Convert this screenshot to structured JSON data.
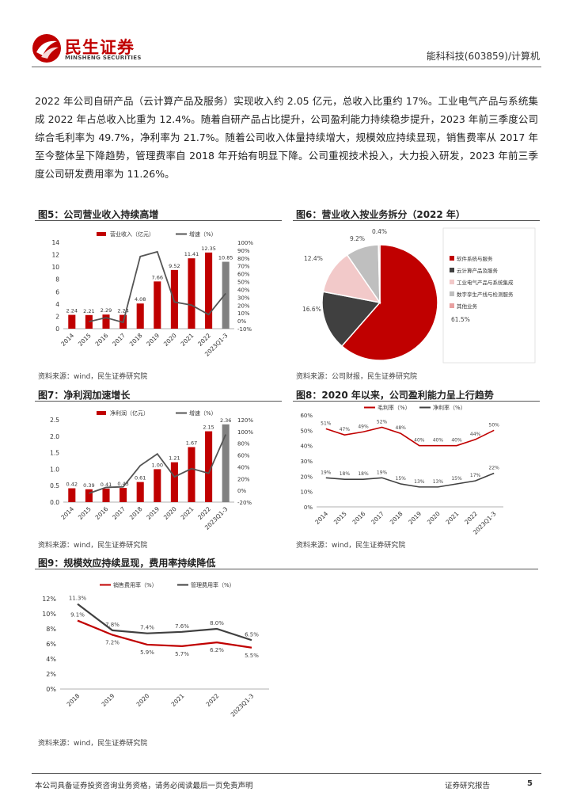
{
  "header": {
    "logo_cn": "民生证券",
    "logo_en": "MINSHENG SECURITIES",
    "company_ticker": "能科科技(603859)/计算机"
  },
  "intro_text": "2022 年公司自研产品（云计算产品及服务）实现收入约 2.05 亿元，总收入比重约 17%。工业电气产品与系统集成 2022 年占总收入比重为 12.4%。随着自研产品占比提升，公司盈利能力持续稳步提升，2023 年前三季度公司综合毛利率为 49.7%，净利率为 21.7%。随着公司收入体量持续增大，规模效应持续显现，销售费率从 2017 年至今整体呈下降趋势，管理费率自 2018 年开始有明显下降。公司重视技术投入，大力投入研发，2023 年前三季度公司研发费用率为 11.26%。",
  "figures": {
    "fig5": {
      "title": "图5：公司营业收入持续高增",
      "source": "资料来源：wind，民生证券研究院"
    },
    "fig6": {
      "title": "图6：营业收入按业务拆分（2022 年）",
      "source": "资料来源：公司财报，民生证券研究院"
    },
    "fig7": {
      "title": "图7：净利润加速增长",
      "source": "资料来源：wind，民生证券研究院"
    },
    "fig8": {
      "title": "图8：2020 年以来，公司盈利能力呈上行趋势",
      "source": "资料来源：wind，民生证券研究院"
    },
    "fig9": {
      "title": "图9：规模效应持续显现，费用率持续降低",
      "source": "资料来源：wind，民生证券研究院"
    }
  },
  "chart_data": [
    {
      "id": "fig5",
      "type": "bar",
      "categories": [
        "2014",
        "2015",
        "2016",
        "2017",
        "2018",
        "2019",
        "2020",
        "2021",
        "2022",
        "2023Q1-3"
      ],
      "series": [
        {
          "name": "营业收入（亿元）",
          "axis": "left",
          "type": "bar",
          "values": [
            2.24,
            2.21,
            2.29,
            2.24,
            4.08,
            7.66,
            9.52,
            11.41,
            12.35,
            10.85
          ],
          "labels": [
            "2.24",
            "2.21",
            "2.29",
            "2.24",
            "4.08",
            "7.66",
            "9.52",
            "11.41",
            "12.35",
            "10.85"
          ],
          "color": "#c00000",
          "last_color": "#808080"
        },
        {
          "name": "增速（%）",
          "axis": "right",
          "type": "line",
          "values": [
            null,
            -1,
            4,
            -2,
            82,
            88,
            24,
            20,
            8,
            35
          ],
          "color": "#555555"
        }
      ],
      "ylim_left": [
        0,
        14
      ],
      "yticks_left": [
        "0",
        "2",
        "4",
        "6",
        "8",
        "10",
        "12",
        "14"
      ],
      "ylim_right": [
        -10,
        100
      ],
      "yticks_right": [
        "-10%",
        "0%",
        "10%",
        "20%",
        "30%",
        "40%",
        "50%",
        "60%",
        "70%",
        "80%",
        "90%",
        "100%"
      ],
      "legend": "top"
    },
    {
      "id": "fig6",
      "type": "pie",
      "slices": [
        {
          "name": "软件系统与服务",
          "value": 61.5,
          "label": "61.5%",
          "color": "#c00000"
        },
        {
          "name": "云计算产品及服务",
          "value": 16.6,
          "label": "16.6%",
          "color": "#404040"
        },
        {
          "name": "工业电气产品与系统集成",
          "value": 12.4,
          "label": "12.4%",
          "color": "#f2c9c9"
        },
        {
          "name": "数字孪生产线与检测服务",
          "value": 9.2,
          "label": "9.2%",
          "color": "#bfbfbf"
        },
        {
          "name": "其他业务",
          "value": 0.4,
          "label": "0.4%",
          "color": "#e8a0a0"
        }
      ],
      "legend": "right"
    },
    {
      "id": "fig7",
      "type": "bar",
      "categories": [
        "2014",
        "2015",
        "2016",
        "2017",
        "2018",
        "2019",
        "2020",
        "2021",
        "2022",
        "2023Q1-3"
      ],
      "series": [
        {
          "name": "净利润（亿元）",
          "axis": "left",
          "type": "bar",
          "values": [
            0.42,
            0.39,
            0.41,
            0.43,
            0.61,
            1.0,
            1.21,
            1.67,
            2.15,
            2.36
          ],
          "labels": [
            "0.42",
            "0.39",
            "0.41",
            "0.43",
            "0.61",
            "1.00",
            "1.21",
            "1.67",
            "2.15",
            "2.36"
          ],
          "color": "#c00000",
          "last_color": "#808080"
        },
        {
          "name": "增速（%）",
          "axis": "right",
          "type": "line",
          "values": [
            null,
            -5,
            5,
            6,
            42,
            62,
            23,
            37,
            29,
            95
          ],
          "color": "#555555"
        }
      ],
      "ylim_left": [
        0,
        2.5
      ],
      "yticks_left": [
        "0.0",
        "0.5",
        "1.0",
        "1.5",
        "2.0",
        "2.5"
      ],
      "ylim_right": [
        -20,
        120
      ],
      "yticks_right": [
        "-20%",
        "0%",
        "20%",
        "40%",
        "60%",
        "80%",
        "100%",
        "120%"
      ],
      "legend": "top"
    },
    {
      "id": "fig8",
      "type": "line",
      "categories": [
        "2014",
        "2015",
        "2016",
        "2017",
        "2018",
        "2019",
        "2020",
        "2021",
        "2022",
        "2023Q1-3"
      ],
      "series": [
        {
          "name": "毛利率（%）",
          "values": [
            51,
            47,
            49,
            52,
            48,
            40,
            40,
            40,
            44,
            50
          ],
          "labels": [
            "51%",
            "47%",
            "49%",
            "52%",
            "48%",
            "40%",
            "40%",
            "40%",
            "44%",
            "50%"
          ],
          "color": "#c00000"
        },
        {
          "name": "净利率（%）",
          "values": [
            19,
            18,
            18,
            19,
            15,
            13,
            13,
            15,
            17,
            22
          ],
          "labels": [
            "19%",
            "18%",
            "18%",
            "19%",
            "15%",
            "13%",
            "13%",
            "15%",
            "17%",
            "22%"
          ],
          "color": "#404040"
        }
      ],
      "ylim": [
        0,
        60
      ],
      "yticks": [
        "0%",
        "10%",
        "20%",
        "30%",
        "40%",
        "50%",
        "60%"
      ],
      "legend": "top"
    },
    {
      "id": "fig9",
      "type": "line",
      "categories": [
        "2018",
        "2019",
        "2020",
        "2021",
        "2022",
        "2023Q1-3"
      ],
      "series": [
        {
          "name": "销售费用率（%）",
          "values": [
            9.1,
            7.2,
            5.9,
            5.7,
            6.2,
            5.5
          ],
          "labels": [
            "9.1%",
            "7.2%",
            "5.9%",
            "5.7%",
            "6.2%",
            "5.5%"
          ],
          "color": "#c00000"
        },
        {
          "name": "管理费用率（%）",
          "values": [
            11.3,
            7.8,
            7.4,
            7.6,
            8.0,
            6.5
          ],
          "labels": [
            "11.3%",
            "7.8%",
            "7.4%",
            "7.6%",
            "8.0%",
            "6.5%"
          ],
          "color": "#404040"
        }
      ],
      "ylim": [
        0,
        12
      ],
      "yticks": [
        "0%",
        "2%",
        "4%",
        "6%",
        "8%",
        "10%",
        "12%"
      ],
      "legend": "top"
    }
  ],
  "footer": {
    "disclaimer": "本公司具备证券投资咨询业务资格，请务必阅读最后一页免责声明",
    "report_type": "证券研究报告",
    "page": "5"
  }
}
